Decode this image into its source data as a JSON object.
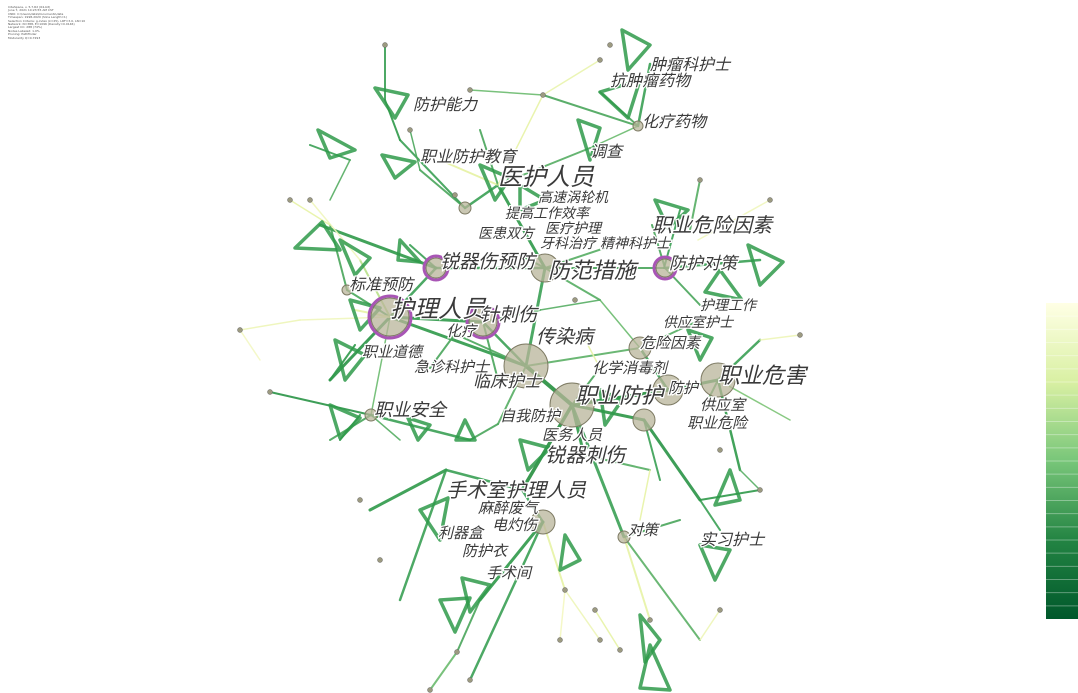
{
  "info_block": [
    "CiteSpace, v. 5.7.R2 (64-bit)",
    "June 7, 2021 10:23:55 AM CST",
    "CNKI: C:\\Users\\data\\Documents\\data",
    "Timespan: 1998-2020 (Slice Length=1)",
    "Selection Criteria: g-index (k=25), LRF=3.0, LN=10",
    "Network: N=388, E=1096 (Density=0.0146)",
    "Largest CC: 288 (74%)",
    "Nodes Labeled: 1.0%",
    "Pruning: Pathfinder",
    "Modularity Q=0.7293"
  ],
  "colors": {
    "edge_dark": "#1e8a3e",
    "edge_mid": "#46a85a",
    "edge_light": "#d7ec9f",
    "edge_pale": "#f4f8c2",
    "node_fill": "#b8b49a",
    "node_ring": "#a855b5",
    "label": "#3a3a3a",
    "colorbar_top": "#ffffe5",
    "colorbar_bottom": "#00582b"
  },
  "keywords": [
    {
      "id": "hlry",
      "label": "护理人员",
      "centrality_ring": true
    },
    {
      "id": "yhry",
      "label": "医护人员",
      "centrality_ring": false
    },
    {
      "id": "ffcs",
      "label": "防范措施",
      "centrality_ring": false
    },
    {
      "id": "zywh",
      "label": "职业危害",
      "centrality_ring": false
    },
    {
      "id": "zyfh",
      "label": "职业防护",
      "centrality_ring": false
    },
    {
      "id": "zcs",
      "label": "针刺伤",
      "centrality_ring": true
    },
    {
      "id": "rqsyf",
      "label": "锐器伤预防",
      "centrality_ring": true
    },
    {
      "id": "crb",
      "label": "传染病",
      "centrality_ring": false
    },
    {
      "id": "lchs",
      "label": "临床护士",
      "centrality_ring": false
    },
    {
      "id": "ssshlry",
      "label": "手术室护理人员",
      "centrality_ring": false
    },
    {
      "id": "rqcs",
      "label": "锐器刺伤",
      "centrality_ring": false
    },
    {
      "id": "zywxys",
      "label": "职业危险因素",
      "centrality_ring": false
    },
    {
      "id": "fhdc",
      "label": "防护对策",
      "centrality_ring": true
    },
    {
      "id": "zyaq",
      "label": "职业安全",
      "centrality_ring": false
    },
    {
      "id": "bzyf",
      "label": "标准预防",
      "centrality_ring": false
    },
    {
      "id": "zyfhjy",
      "label": "职业防护教育",
      "centrality_ring": false
    },
    {
      "id": "fhnl",
      "label": "防护能力",
      "centrality_ring": false
    },
    {
      "id": "zlkhs",
      "label": "肿瘤科护士",
      "centrality_ring": false
    },
    {
      "id": "kzlyw",
      "label": "抗肿瘤药物",
      "centrality_ring": false
    },
    {
      "id": "hlyw",
      "label": "化疗药物",
      "centrality_ring": false
    },
    {
      "id": "dc",
      "label": "调查",
      "centrality_ring": false
    },
    {
      "id": "gsblj",
      "label": "高速涡轮机",
      "centrality_ring": false
    },
    {
      "id": "tggzxl",
      "label": "提高工作效率",
      "centrality_ring": false
    },
    {
      "id": "yhsf",
      "label": "医患双方",
      "centrality_ring": false
    },
    {
      "id": "ylhl",
      "label": "医疗护理",
      "centrality_ring": false
    },
    {
      "id": "yklzs",
      "label": "牙科治疗",
      "centrality_ring": false
    },
    {
      "id": "jskhs",
      "label": "精神科护士",
      "centrality_ring": false
    },
    {
      "id": "hlgz",
      "label": "护理工作",
      "centrality_ring": false
    },
    {
      "id": "gyshs",
      "label": "供应室护士",
      "centrality_ring": false
    },
    {
      "id": "wxys",
      "label": "危险因素",
      "centrality_ring": false
    },
    {
      "id": "hxxdj",
      "label": "化学消毒剂",
      "centrality_ring": false
    },
    {
      "id": "fh",
      "label": "防护",
      "centrality_ring": false
    },
    {
      "id": "gys",
      "label": "供应室",
      "centrality_ring": false
    },
    {
      "id": "zywx",
      "label": "职业危险",
      "centrality_ring": false
    },
    {
      "id": "hl",
      "label": "化疗",
      "centrality_ring": false
    },
    {
      "id": "zyde",
      "label": "职业道德",
      "centrality_ring": false
    },
    {
      "id": "jzkhs",
      "label": "急诊科护士",
      "centrality_ring": false
    },
    {
      "id": "wofh",
      "label": "自我防护",
      "centrality_ring": false
    },
    {
      "id": "ywry",
      "label": "医务人员",
      "centrality_ring": false
    },
    {
      "id": "mzfq",
      "label": "麻醉废气",
      "centrality_ring": false
    },
    {
      "id": "ddg",
      "label": "电灼伤",
      "centrality_ring": false
    },
    {
      "id": "lqh",
      "label": "利器盒",
      "centrality_ring": false
    },
    {
      "id": "fhy",
      "label": "防护衣",
      "centrality_ring": false
    },
    {
      "id": "ssj",
      "label": "手术间",
      "centrality_ring": false
    },
    {
      "id": "dc2",
      "label": "对策",
      "centrality_ring": false
    },
    {
      "id": "sxhs",
      "label": "实习护士",
      "centrality_ring": false
    }
  ]
}
